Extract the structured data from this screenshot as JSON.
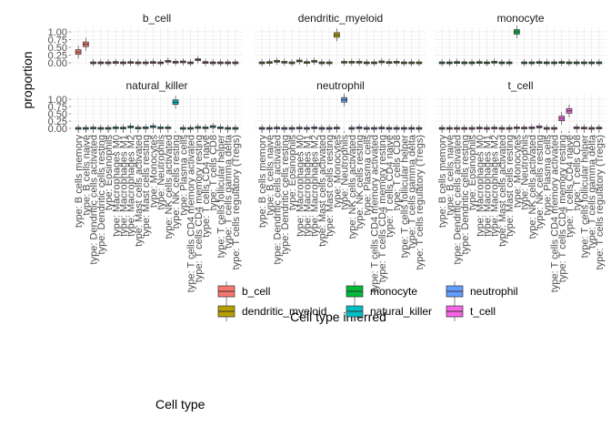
{
  "chart_data": {
    "type": "box",
    "facet_panels": [
      "b_cell",
      "dendritic_myeloid",
      "monocyte",
      "natural_killer",
      "neutrophil",
      "t_cell"
    ],
    "categories": [
      "type: B cells memory",
      "type: B cells naive",
      "type: Dendritic cells activated",
      "type: Dendritic cells resting",
      "type: Eosinophils",
      "type: Macrophages M0",
      "type: Macrophages M1",
      "type: Macrophages M2",
      "type: Mast cells activated",
      "type: Mast cells resting",
      "type: Monocytes",
      "type: Neutrophils",
      "type: NK cells activated",
      "type: NK cells resting",
      "type: Plasma cells",
      "type: T cells CD4 memory activated",
      "type: T cells CD4 memory resting",
      "type: T cells CD4 naive",
      "type: T cells CD8",
      "type: T cells follicular helper",
      "type: T cells gamma delta",
      "type: T cells regulatory (Tregs)"
    ],
    "xlabel": "Cell type inferred",
    "ylabel": "proportion",
    "ylim": [
      0,
      1
    ],
    "yticks": [
      "0.00",
      "0.25",
      "0.50",
      "0.75",
      "1.00"
    ],
    "grid": true,
    "legend": {
      "title": "Cell type",
      "position": "bottom",
      "items": [
        {
          "label": "b_cell",
          "color": "#F8766D"
        },
        {
          "label": "dendritic_myeloid",
          "color": "#B79F00"
        },
        {
          "label": "monocyte",
          "color": "#00BA38"
        },
        {
          "label": "natural_killer",
          "color": "#00BFC4"
        },
        {
          "label": "neutrophil",
          "color": "#619CFF"
        },
        {
          "label": "t_cell",
          "color": "#F564E3"
        }
      ]
    },
    "series": [
      {
        "panel": "b_cell",
        "medians": [
          0.35,
          0.6,
          0.0,
          0.0,
          0.0,
          0.01,
          0.0,
          0.01,
          0.0,
          0.0,
          0.01,
          0.0,
          0.05,
          0.02,
          0.03,
          0.0,
          0.1,
          0.01,
          0.0,
          0.0,
          0.0,
          0.0
        ]
      },
      {
        "panel": "dendritic_myeloid",
        "medians": [
          0.0,
          0.01,
          0.05,
          0.02,
          0.0,
          0.06,
          0.01,
          0.05,
          0.0,
          0.0,
          0.9,
          0.02,
          0.02,
          0.02,
          0.0,
          0.0,
          0.03,
          0.01,
          0.02,
          0.0,
          0.0,
          0.0
        ]
      },
      {
        "panel": "monocyte",
        "medians": [
          0.0,
          0.0,
          0.01,
          0.0,
          0.0,
          0.01,
          0.0,
          0.02,
          0.0,
          0.0,
          1.0,
          0.0,
          0.0,
          0.01,
          0.0,
          0.0,
          0.01,
          0.0,
          0.0,
          0.0,
          0.0,
          0.0
        ]
      },
      {
        "panel": "natural_killer",
        "medians": [
          0.0,
          0.0,
          0.01,
          0.0,
          0.0,
          0.02,
          0.01,
          0.05,
          0.01,
          0.02,
          0.06,
          0.02,
          0.02,
          0.9,
          0.0,
          0.0,
          0.03,
          0.02,
          0.06,
          0.02,
          0.0,
          0.0
        ]
      },
      {
        "panel": "neutrophil",
        "medians": [
          0.0,
          0.0,
          0.01,
          0.0,
          0.0,
          0.01,
          0.0,
          0.02,
          0.0,
          0.0,
          0.01,
          0.98,
          0.0,
          0.02,
          0.0,
          0.0,
          0.01,
          0.0,
          0.0,
          0.0,
          0.0,
          0.0
        ]
      },
      {
        "panel": "t_cell",
        "medians": [
          0.0,
          0.0,
          0.0,
          0.0,
          0.0,
          0.01,
          0.0,
          0.01,
          0.0,
          0.0,
          0.02,
          0.01,
          0.02,
          0.05,
          0.0,
          0.0,
          0.34,
          0.6,
          0.02,
          0.01,
          0.0,
          0.01
        ]
      }
    ]
  }
}
